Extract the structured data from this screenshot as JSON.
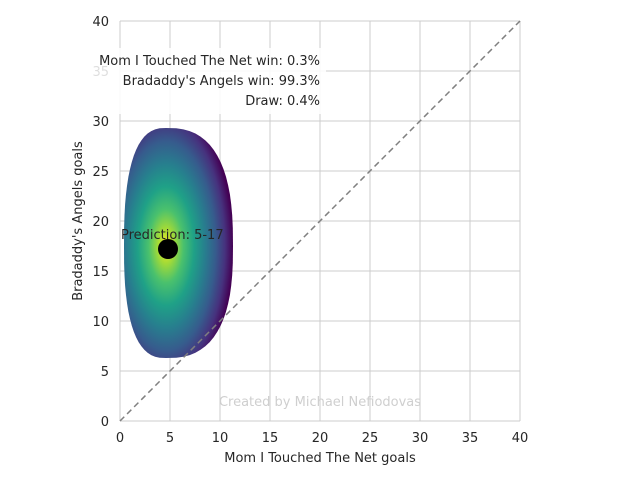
{
  "chart_data": {
    "type": "heatmap",
    "xlabel": "Mom I Touched The Net goals",
    "ylabel": "Bradaddy's Angels goals",
    "xlim": [
      0,
      40
    ],
    "ylim": [
      0,
      40
    ],
    "x_ticks": [
      "0",
      "5",
      "10",
      "15",
      "20",
      "25",
      "30",
      "35",
      "40"
    ],
    "y_ticks": [
      "0",
      "5",
      "10",
      "15",
      "20",
      "25",
      "30",
      "35",
      "40"
    ],
    "grid": true,
    "colormap": "viridis",
    "distribution": {
      "center": [
        4.6,
        17.5
      ],
      "x_extent": [
        0.4,
        11.3
      ],
      "y_extent": [
        6.3,
        29.3
      ]
    },
    "diagonal": {
      "from": [
        0,
        0
      ],
      "to": [
        40,
        40
      ],
      "style": "dashed",
      "color": "#808080"
    },
    "prediction": {
      "label": "Prediction: 5-17",
      "x": 4.8,
      "y": 17.2
    },
    "stats": {
      "away_win": "Mom I Touched The Net win: 0.3%",
      "home_win": "Bradaddy's Angels win: 99.3%",
      "draw": "Draw: 0.4%"
    },
    "credit": "Created by Michael Nefiodovas"
  }
}
